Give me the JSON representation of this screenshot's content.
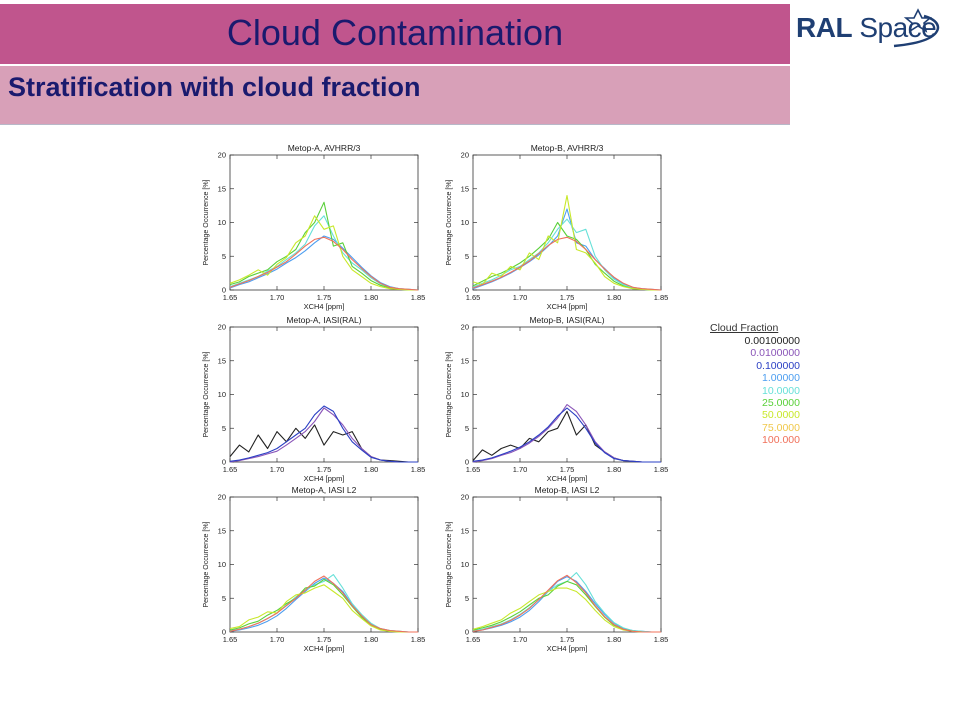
{
  "slide": {
    "title": "Cloud Contamination",
    "subtitle": "Stratification with cloud fraction",
    "logo": {
      "name_bold": "RAL",
      "name_light": " Space"
    },
    "colors": {
      "title_bar": "#c0558d",
      "subtitle_bar": "#d8a0b8",
      "title_text": "#1a1a6e",
      "logo_text": "#1f3f73"
    }
  },
  "legend": {
    "title": "Cloud Fraction",
    "entries": [
      {
        "label": "0.00100000",
        "color": "#222222"
      },
      {
        "label": "0.0100000",
        "color": "#8a55b8"
      },
      {
        "label": "0.100000",
        "color": "#2a3fc4"
      },
      {
        "label": "1.00000",
        "color": "#4c9ef0"
      },
      {
        "label": "10.0000",
        "color": "#66e0d8"
      },
      {
        "label": "25.0000",
        "color": "#5ad03a"
      },
      {
        "label": "50.0000",
        "color": "#c8e82a"
      },
      {
        "label": "75.0000",
        "color": "#f0c84a"
      },
      {
        "label": "100.000",
        "color": "#f0705a"
      }
    ]
  },
  "chart_data": [
    {
      "type": "line",
      "title": "Metop-A, AVHRR/3",
      "xlabel": "XCH4 [ppm]",
      "ylabel": "Percentage Occurrence [%]",
      "xlim": [
        1.65,
        1.85
      ],
      "ylim": [
        0,
        20
      ],
      "xticks": [
        "1.65",
        "1.70",
        "1.75",
        "1.80",
        "1.85"
      ],
      "yticks": [
        "0",
        "5",
        "10",
        "15",
        "20"
      ],
      "x": [
        1.65,
        1.66,
        1.67,
        1.68,
        1.69,
        1.7,
        1.71,
        1.72,
        1.73,
        1.74,
        1.75,
        1.76,
        1.77,
        1.78,
        1.79,
        1.8,
        1.81,
        1.82,
        1.83,
        1.84,
        1.85
      ],
      "series": [
        {
          "color": "#4c9ef0",
          "values": [
            0.3,
            0.8,
            1.2,
            1.8,
            2.4,
            3.1,
            4.0,
            4.8,
            5.8,
            7.0,
            8.0,
            7.5,
            6.2,
            4.8,
            3.4,
            2.1,
            1.1,
            0.5,
            0.2,
            0.1,
            0.0
          ]
        },
        {
          "color": "#66e0d8",
          "values": [
            0.5,
            1.0,
            1.5,
            2.0,
            2.8,
            3.5,
            4.5,
            5.5,
            6.8,
            9.5,
            11.0,
            8.0,
            5.5,
            4.0,
            3.0,
            1.8,
            0.9,
            0.4,
            0.2,
            0.1,
            0.0
          ]
        },
        {
          "color": "#5ad03a",
          "values": [
            0.8,
            1.2,
            2.0,
            2.5,
            3.0,
            4.2,
            5.0,
            6.0,
            8.5,
            10.0,
            13.0,
            6.5,
            7.0,
            3.5,
            2.5,
            1.4,
            0.7,
            0.3,
            0.1,
            0.0,
            0.0
          ]
        },
        {
          "color": "#c8e82a",
          "values": [
            1.0,
            1.5,
            2.2,
            3.0,
            2.2,
            3.8,
            4.8,
            7.0,
            8.0,
            11.0,
            9.0,
            9.5,
            5.0,
            3.0,
            2.0,
            1.0,
            0.5,
            0.2,
            0.1,
            0.0,
            0.0
          ]
        },
        {
          "color": "#f0705a",
          "values": [
            0.4,
            0.9,
            1.4,
            2.0,
            2.6,
            3.4,
            4.2,
            5.3,
            6.5,
            7.5,
            7.8,
            7.2,
            6.0,
            4.5,
            3.2,
            2.0,
            1.0,
            0.4,
            0.2,
            0.1,
            0.0
          ]
        }
      ]
    },
    {
      "type": "line",
      "title": "Metop-B, AVHRR/3",
      "xlabel": "XCH4 [ppm]",
      "ylabel": "Percentage Occurrence [%]",
      "xlim": [
        1.65,
        1.85
      ],
      "ylim": [
        0,
        20
      ],
      "xticks": [
        "1.65",
        "1.70",
        "1.75",
        "1.80",
        "1.85"
      ],
      "yticks": [
        "0",
        "5",
        "10",
        "15",
        "20"
      ],
      "x": [
        1.65,
        1.66,
        1.67,
        1.68,
        1.69,
        1.7,
        1.71,
        1.72,
        1.73,
        1.74,
        1.75,
        1.76,
        1.77,
        1.78,
        1.79,
        1.8,
        1.81,
        1.82,
        1.83,
        1.84,
        1.85
      ],
      "series": [
        {
          "color": "#4c9ef0",
          "values": [
            0.2,
            0.7,
            1.2,
            1.8,
            2.5,
            3.3,
            4.2,
            5.2,
            6.5,
            8.0,
            12.0,
            7.0,
            6.5,
            4.5,
            3.2,
            1.8,
            0.9,
            0.4,
            0.2,
            0.1,
            0.0
          ]
        },
        {
          "color": "#66e0d8",
          "values": [
            0.4,
            1.0,
            1.5,
            2.2,
            3.0,
            3.5,
            4.5,
            5.5,
            7.0,
            9.0,
            10.5,
            8.5,
            9.0,
            5.0,
            3.0,
            1.6,
            0.8,
            0.3,
            0.1,
            0.0,
            0.0
          ]
        },
        {
          "color": "#5ad03a",
          "values": [
            0.6,
            1.3,
            2.0,
            2.5,
            3.2,
            4.0,
            5.0,
            6.2,
            7.5,
            10.0,
            8.0,
            7.5,
            6.0,
            3.8,
            2.5,
            1.3,
            0.6,
            0.2,
            0.1,
            0.0,
            0.0
          ]
        },
        {
          "color": "#c8e82a",
          "values": [
            1.2,
            0.8,
            2.5,
            2.0,
            3.5,
            3.0,
            5.5,
            4.5,
            8.0,
            7.0,
            14.0,
            6.0,
            5.5,
            4.0,
            2.0,
            1.0,
            0.5,
            0.2,
            0.1,
            0.0,
            0.0
          ]
        },
        {
          "color": "#f0705a",
          "values": [
            0.3,
            0.8,
            1.3,
            1.9,
            2.6,
            3.4,
            4.3,
            5.4,
            6.6,
            7.5,
            7.8,
            7.2,
            6.0,
            4.5,
            3.1,
            1.9,
            1.0,
            0.4,
            0.2,
            0.1,
            0.0
          ]
        }
      ]
    },
    {
      "type": "line",
      "title": "Metop-A, IASI(RAL)",
      "xlabel": "XCH4 [ppm]",
      "ylabel": "Percentage Occurrence [%]",
      "xlim": [
        1.65,
        1.85
      ],
      "ylim": [
        0,
        20
      ],
      "xticks": [
        "1.65",
        "1.70",
        "1.75",
        "1.80",
        "1.85"
      ],
      "yticks": [
        "0",
        "5",
        "10",
        "15",
        "20"
      ],
      "x": [
        1.65,
        1.66,
        1.67,
        1.68,
        1.69,
        1.7,
        1.71,
        1.72,
        1.73,
        1.74,
        1.75,
        1.76,
        1.77,
        1.78,
        1.79,
        1.8,
        1.81,
        1.82,
        1.83,
        1.84,
        1.85
      ],
      "series": [
        {
          "color": "#222222",
          "values": [
            0.8,
            2.5,
            1.5,
            4.0,
            2.0,
            4.5,
            3.0,
            5.0,
            3.5,
            5.5,
            2.5,
            4.5,
            4.0,
            4.5,
            2.0,
            0.8,
            0.3,
            0.2,
            0.1,
            0.0,
            0.0
          ]
        },
        {
          "color": "#8a55b8",
          "values": [
            0.0,
            0.2,
            0.5,
            0.8,
            1.2,
            1.6,
            2.5,
            3.5,
            4.5,
            6.0,
            8.0,
            7.0,
            5.5,
            3.5,
            2.0,
            0.8,
            0.3,
            0.1,
            0.0,
            0.0,
            0.0
          ]
        },
        {
          "color": "#2a3fc4",
          "values": [
            0.1,
            0.3,
            0.6,
            1.0,
            1.4,
            2.0,
            3.0,
            4.0,
            5.0,
            7.0,
            8.3,
            7.5,
            5.0,
            3.0,
            1.8,
            0.7,
            0.3,
            0.1,
            0.0,
            0.0,
            0.0
          ]
        }
      ]
    },
    {
      "type": "line",
      "title": "Metop-B, IASI(RAL)",
      "xlabel": "XCH4 [ppm]",
      "ylabel": "Percentage Occurrence [%]",
      "xlim": [
        1.65,
        1.85
      ],
      "ylim": [
        0,
        20
      ],
      "xticks": [
        "1.65",
        "1.70",
        "1.75",
        "1.80",
        "1.85"
      ],
      "yticks": [
        "0",
        "5",
        "10",
        "15",
        "20"
      ],
      "x": [
        1.65,
        1.66,
        1.67,
        1.68,
        1.69,
        1.7,
        1.71,
        1.72,
        1.73,
        1.74,
        1.75,
        1.76,
        1.77,
        1.78,
        1.79,
        1.8,
        1.81,
        1.82,
        1.83,
        1.84,
        1.85
      ],
      "series": [
        {
          "color": "#222222",
          "values": [
            0.2,
            1.8,
            1.0,
            2.0,
            2.5,
            2.0,
            3.5,
            3.0,
            4.5,
            5.0,
            7.5,
            4.0,
            5.5,
            2.5,
            1.5,
            0.6,
            0.2,
            0.1,
            0.0,
            0.0,
            0.0
          ]
        },
        {
          "color": "#8a55b8",
          "values": [
            0.0,
            0.2,
            0.5,
            1.0,
            1.4,
            2.0,
            2.8,
            3.8,
            5.0,
            6.5,
            8.5,
            7.5,
            5.5,
            3.0,
            1.5,
            0.6,
            0.2,
            0.1,
            0.0,
            0.0,
            0.0
          ]
        },
        {
          "color": "#2a3fc4",
          "values": [
            0.1,
            0.3,
            0.6,
            1.1,
            1.6,
            2.2,
            3.0,
            4.0,
            5.2,
            6.8,
            8.0,
            6.8,
            5.0,
            2.8,
            1.4,
            0.5,
            0.2,
            0.1,
            0.0,
            0.0,
            0.0
          ]
        }
      ]
    },
    {
      "type": "line",
      "title": "Metop-A, IASI L2",
      "xlabel": "XCH4 [ppm]",
      "ylabel": "Percentage Occurrence [%]",
      "xlim": [
        1.65,
        1.85
      ],
      "ylim": [
        0,
        20
      ],
      "xticks": [
        "1.65",
        "1.70",
        "1.75",
        "1.80",
        "1.85"
      ],
      "yticks": [
        "0",
        "5",
        "10",
        "15",
        "20"
      ],
      "x": [
        1.65,
        1.66,
        1.67,
        1.68,
        1.69,
        1.7,
        1.71,
        1.72,
        1.73,
        1.74,
        1.75,
        1.76,
        1.77,
        1.78,
        1.79,
        1.8,
        1.81,
        1.82,
        1.83,
        1.84,
        1.85
      ],
      "series": [
        {
          "color": "#4c9ef0",
          "values": [
            0.1,
            0.3,
            0.6,
            1.0,
            1.6,
            2.4,
            3.5,
            4.8,
            6.0,
            7.2,
            8.0,
            7.2,
            6.0,
            4.0,
            2.5,
            1.2,
            0.5,
            0.2,
            0.1,
            0.0,
            0.0
          ]
        },
        {
          "color": "#66e0d8",
          "values": [
            0.2,
            0.4,
            0.8,
            1.3,
            2.0,
            2.8,
            4.0,
            5.2,
            6.2,
            7.0,
            7.5,
            8.5,
            6.5,
            4.2,
            2.6,
            1.3,
            0.5,
            0.2,
            0.1,
            0.0,
            0.0
          ]
        },
        {
          "color": "#5ad03a",
          "values": [
            0.3,
            0.6,
            1.2,
            1.6,
            2.5,
            3.2,
            4.2,
            5.0,
            6.5,
            6.8,
            7.8,
            7.0,
            5.5,
            3.8,
            2.2,
            1.0,
            0.4,
            0.1,
            0.0,
            0.0,
            0.0
          ]
        },
        {
          "color": "#c8e82a",
          "values": [
            0.5,
            0.8,
            1.8,
            2.2,
            3.0,
            2.8,
            4.5,
            5.5,
            5.8,
            6.5,
            7.0,
            6.0,
            5.0,
            3.2,
            2.0,
            0.9,
            0.3,
            0.1,
            0.0,
            0.0,
            0.0
          ]
        },
        {
          "color": "#f0705a",
          "values": [
            0.1,
            0.4,
            0.8,
            1.3,
            2.0,
            2.8,
            3.9,
            5.0,
            6.2,
            7.5,
            8.3,
            7.2,
            5.8,
            3.9,
            2.4,
            1.1,
            0.5,
            0.2,
            0.1,
            0.0,
            0.0
          ]
        }
      ]
    },
    {
      "type": "line",
      "title": "Metop-B, IASI L2",
      "xlabel": "XCH4 [ppm]",
      "ylabel": "Percentage Occurrence [%]",
      "xlim": [
        1.65,
        1.85
      ],
      "ylim": [
        0,
        20
      ],
      "xticks": [
        "1.65",
        "1.70",
        "1.75",
        "1.80",
        "1.85"
      ],
      "yticks": [
        "0",
        "5",
        "10",
        "15",
        "20"
      ],
      "x": [
        1.65,
        1.66,
        1.67,
        1.68,
        1.69,
        1.7,
        1.71,
        1.72,
        1.73,
        1.74,
        1.75,
        1.76,
        1.77,
        1.78,
        1.79,
        1.8,
        1.81,
        1.82,
        1.83,
        1.84,
        1.85
      ],
      "series": [
        {
          "color": "#4c9ef0",
          "values": [
            0.1,
            0.3,
            0.6,
            1.0,
            1.5,
            2.2,
            3.2,
            4.5,
            6.0,
            7.5,
            8.2,
            7.5,
            6.0,
            4.2,
            2.6,
            1.3,
            0.5,
            0.2,
            0.1,
            0.0,
            0.0
          ]
        },
        {
          "color": "#66e0d8",
          "values": [
            0.2,
            0.4,
            0.8,
            1.2,
            1.8,
            2.6,
            3.6,
            4.8,
            6.0,
            7.0,
            7.5,
            8.8,
            7.0,
            4.5,
            2.8,
            1.4,
            0.6,
            0.2,
            0.1,
            0.0,
            0.0
          ]
        },
        {
          "color": "#5ad03a",
          "values": [
            0.3,
            0.6,
            1.0,
            1.5,
            2.2,
            3.0,
            4.0,
            5.0,
            5.5,
            6.8,
            7.5,
            7.0,
            5.5,
            3.8,
            2.2,
            1.0,
            0.4,
            0.1,
            0.0,
            0.0,
            0.0
          ]
        },
        {
          "color": "#c8e82a",
          "values": [
            0.4,
            0.8,
            1.3,
            1.8,
            2.8,
            3.5,
            4.5,
            5.5,
            6.0,
            6.5,
            6.5,
            6.0,
            4.8,
            3.2,
            1.8,
            0.8,
            0.3,
            0.1,
            0.0,
            0.0,
            0.0
          ]
        },
        {
          "color": "#f0705a",
          "values": [
            0.1,
            0.3,
            0.7,
            1.1,
            1.7,
            2.5,
            3.5,
            4.8,
            6.2,
            7.6,
            8.4,
            7.3,
            5.8,
            3.9,
            2.3,
            1.1,
            0.4,
            0.1,
            0.0,
            0.0,
            0.0
          ]
        }
      ]
    }
  ]
}
